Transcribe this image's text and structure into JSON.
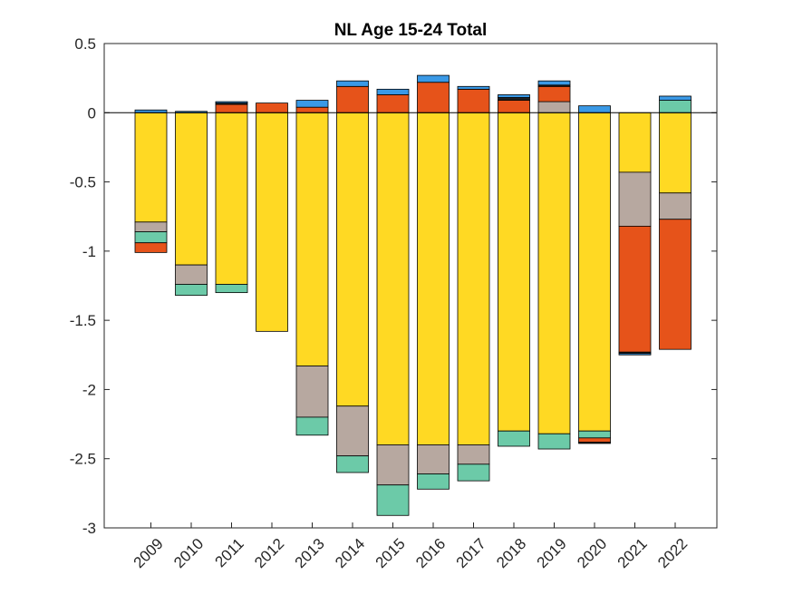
{
  "chart_data": {
    "type": "bar",
    "stacked": true,
    "title": "NL  Age 15-24  Total",
    "xlabel": "",
    "ylabel": "",
    "ylim": [
      -3,
      0.5
    ],
    "yticks": [
      0.5,
      0,
      -0.5,
      -1,
      -1.5,
      -2,
      -2.5,
      -3
    ],
    "ytick_labels": [
      "0.5",
      "0",
      "-0.5",
      "-1",
      "-1.5",
      "-2",
      "-2.5",
      "-3"
    ],
    "categories": [
      "2009",
      "2010",
      "2011",
      "2012",
      "2013",
      "2014",
      "2015",
      "2016",
      "2017",
      "2018",
      "2019",
      "2020",
      "2021",
      "2022"
    ],
    "legend": "none",
    "grid": false,
    "baseline": 0,
    "series": [
      {
        "name": "yellow",
        "color": "#FFD923",
        "values": [
          -0.79,
          -1.1,
          -1.24,
          -1.58,
          -1.83,
          -2.12,
          -2.4,
          -2.4,
          -2.4,
          -2.3,
          -2.32,
          -2.3,
          -0.43,
          -0.58
        ]
      },
      {
        "name": "gray",
        "color": "#B7A8A0",
        "values": [
          -0.07,
          -0.14,
          0,
          0,
          -0.37,
          -0.36,
          -0.29,
          -0.21,
          -0.14,
          0,
          0.08,
          0,
          -0.39,
          -0.19
        ]
      },
      {
        "name": "teal",
        "color": "#6CCAA8",
        "values": [
          -0.08,
          -0.08,
          -0.06,
          0,
          -0.13,
          -0.12,
          -0.22,
          -0.11,
          -0.12,
          -0.11,
          -0.11,
          -0.05,
          0,
          0.09
        ]
      },
      {
        "name": "orange",
        "color": "#E6531A",
        "values": [
          -0.07,
          0,
          0.06,
          0.07,
          0.04,
          0.19,
          0.13,
          0.22,
          0.17,
          0.09,
          0.11,
          -0.03,
          -0.91,
          -0.94
        ]
      },
      {
        "name": "dark",
        "color": "#1F1F1F",
        "values": [
          0,
          0,
          0.01,
          0,
          0,
          0,
          0,
          0,
          0,
          0.02,
          0.01,
          -0.01,
          -0.01,
          0
        ]
      },
      {
        "name": "blue",
        "color": "#3A99E6",
        "values": [
          0.02,
          0.01,
          0.01,
          0,
          0.05,
          0.04,
          0.04,
          0.05,
          0.02,
          0.02,
          0.03,
          0.05,
          -0.01,
          0.03
        ]
      }
    ]
  }
}
